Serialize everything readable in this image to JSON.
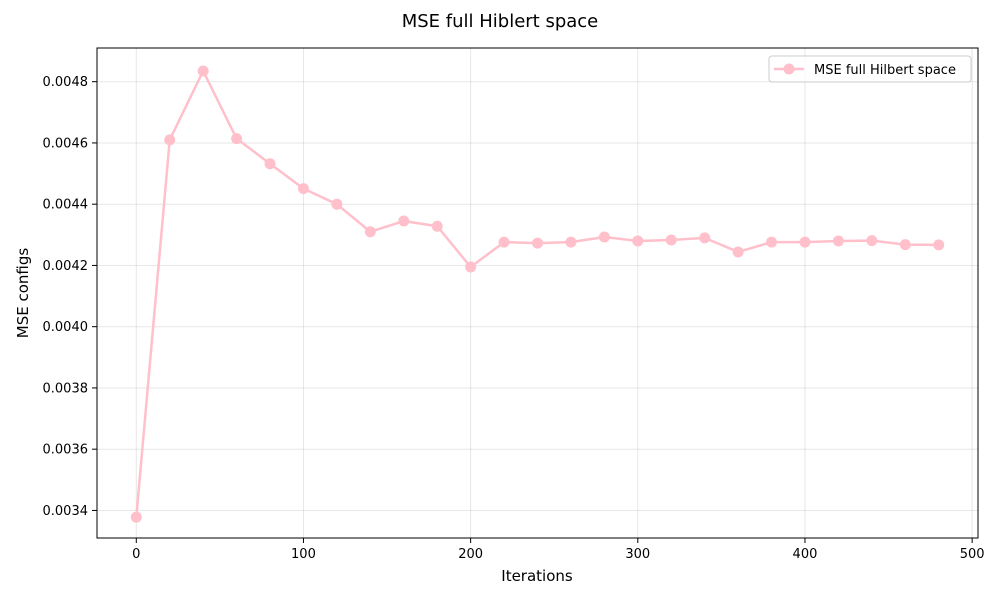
{
  "chart_data": {
    "type": "line",
    "title": "MSE full Hiblert space",
    "xlabel": "Iterations",
    "ylabel": "MSE configs",
    "xlim": [
      -23.5,
      503.5
    ],
    "ylim": [
      0.00331,
      0.00491
    ],
    "x_ticks": [
      0,
      100,
      200,
      300,
      400,
      500
    ],
    "x_tick_labels": [
      "0",
      "100",
      "200",
      "300",
      "400",
      "500"
    ],
    "y_ticks": [
      0.0034,
      0.0036,
      0.0038,
      0.004,
      0.0042,
      0.0044,
      0.0046,
      0.0048
    ],
    "y_tick_labels": [
      "0.0034",
      "0.0036",
      "0.0038",
      "0.0040",
      "0.0042",
      "0.0044",
      "0.0046",
      "0.0048"
    ],
    "grid": true,
    "legend_position": "top-right",
    "series": [
      {
        "name": "MSE full Hilbert space",
        "color": "#ffc0cb",
        "marker": "circle",
        "x": [
          0,
          20,
          40,
          60,
          80,
          100,
          120,
          140,
          160,
          180,
          200,
          220,
          240,
          260,
          280,
          300,
          320,
          340,
          360,
          380,
          400,
          420,
          440,
          460,
          480
        ],
        "y": [
          0.003378,
          0.00461,
          0.004835,
          0.004614,
          0.004532,
          0.004451,
          0.0044,
          0.00431,
          0.004345,
          0.004328,
          0.004195,
          0.004276,
          0.004273,
          0.004276,
          0.004293,
          0.00428,
          0.004283,
          0.00429,
          0.004244,
          0.004276,
          0.004276,
          0.00428,
          0.004281,
          0.004268,
          0.004267
        ]
      }
    ]
  }
}
